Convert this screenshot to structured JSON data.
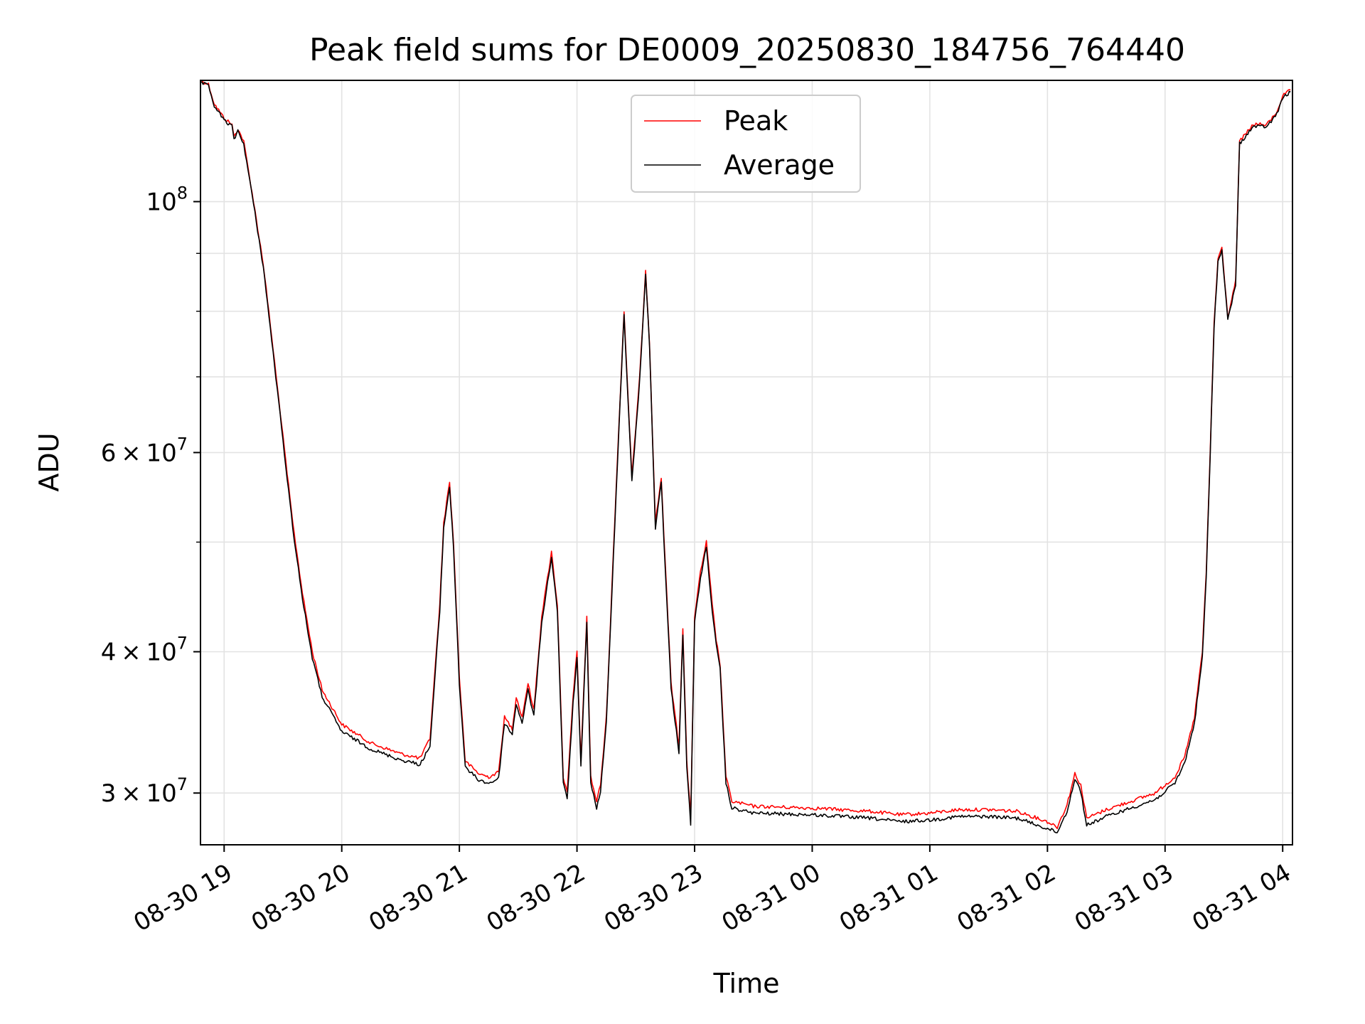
{
  "chart_data": {
    "type": "line",
    "title": "Peak field sums for DE0009_20250830_184756_764440",
    "xlabel": "Time",
    "ylabel": "ADU",
    "yscale": "log",
    "ylim": [
      27000000,
      128000000
    ],
    "xlim": [
      "2025-08-30 18:47:56",
      "2025-08-31 04:05:00"
    ],
    "grid": true,
    "legend_position": "top-center",
    "x_ticks": [
      {
        "t": "2025-08-30 19:00",
        "label": "08-30 19"
      },
      {
        "t": "2025-08-30 20:00",
        "label": "08-30 20"
      },
      {
        "t": "2025-08-30 21:00",
        "label": "08-30 21"
      },
      {
        "t": "2025-08-30 22:00",
        "label": "08-30 22"
      },
      {
        "t": "2025-08-30 23:00",
        "label": "08-30 23"
      },
      {
        "t": "2025-08-31 00:00",
        "label": "08-31 00"
      },
      {
        "t": "2025-08-31 01:00",
        "label": "08-31 01"
      },
      {
        "t": "2025-08-31 02:00",
        "label": "08-31 02"
      },
      {
        "t": "2025-08-31 03:00",
        "label": "08-31 03"
      },
      {
        "t": "2025-08-31 04:00",
        "label": "08-31 04"
      }
    ],
    "y_ticks": [
      {
        "value": 30000000,
        "mantissa": "3",
        "exp": "7"
      },
      {
        "value": 40000000,
        "mantissa": "4",
        "exp": "7"
      },
      {
        "value": 60000000,
        "mantissa": "6",
        "exp": "7"
      },
      {
        "value": 100000000,
        "mantissa": "",
        "exp": "8"
      }
    ],
    "y_minor_ticks": [
      50000000,
      70000000,
      80000000,
      90000000
    ],
    "series": [
      {
        "name": "Peak",
        "color": "#ff0000",
        "x": [
          "2025-08-30 18:47:56",
          "2025-08-30 18:52",
          "2025-08-30 18:55",
          "2025-08-30 19:00",
          "2025-08-30 19:04",
          "2025-08-30 19:05",
          "2025-08-30 19:07",
          "2025-08-30 19:10",
          "2025-08-30 19:15",
          "2025-08-30 19:20",
          "2025-08-30 19:25",
          "2025-08-30 19:30",
          "2025-08-30 19:35",
          "2025-08-30 19:40",
          "2025-08-30 19:45",
          "2025-08-30 19:50",
          "2025-08-30 20:00",
          "2025-08-30 20:15",
          "2025-08-30 20:30",
          "2025-08-30 20:40",
          "2025-08-30 20:45",
          "2025-08-30 20:50",
          "2025-08-30 20:52",
          "2025-08-30 20:55",
          "2025-08-30 20:57",
          "2025-08-30 21:00",
          "2025-08-30 21:03",
          "2025-08-30 21:10",
          "2025-08-30 21:15",
          "2025-08-30 21:20",
          "2025-08-30 21:23",
          "2025-08-30 21:27",
          "2025-08-30 21:29",
          "2025-08-30 21:32",
          "2025-08-30 21:35",
          "2025-08-30 21:38",
          "2025-08-30 21:42",
          "2025-08-30 21:45",
          "2025-08-30 21:47",
          "2025-08-30 21:50",
          "2025-08-30 21:53",
          "2025-08-30 21:55",
          "2025-08-30 21:58",
          "2025-08-30 22:00",
          "2025-08-30 22:02",
          "2025-08-30 22:05",
          "2025-08-30 22:07",
          "2025-08-30 22:10",
          "2025-08-30 22:12",
          "2025-08-30 22:15",
          "2025-08-30 22:20",
          "2025-08-30 22:24",
          "2025-08-30 22:28",
          "2025-08-30 22:32",
          "2025-08-30 22:35",
          "2025-08-30 22:37",
          "2025-08-30 22:40",
          "2025-08-30 22:43",
          "2025-08-30 22:45",
          "2025-08-30 22:48",
          "2025-08-30 22:52",
          "2025-08-30 22:54",
          "2025-08-30 22:56",
          "2025-08-30 22:58",
          "2025-08-30 23:00",
          "2025-08-30 23:03",
          "2025-08-30 23:06",
          "2025-08-30 23:09",
          "2025-08-30 23:11",
          "2025-08-30 23:13",
          "2025-08-30 23:16",
          "2025-08-30 23:19",
          "2025-08-30 23:30",
          "2025-08-31 00:00",
          "2025-08-31 00:30",
          "2025-08-31 00:45",
          "2025-08-31 01:00",
          "2025-08-31 01:15",
          "2025-08-31 01:30",
          "2025-08-31 01:45",
          "2025-08-31 02:00",
          "2025-08-31 02:05",
          "2025-08-31 02:10",
          "2025-08-31 02:14",
          "2025-08-31 02:17",
          "2025-08-31 02:20",
          "2025-08-31 02:30",
          "2025-08-31 02:45",
          "2025-08-31 02:55",
          "2025-08-31 03:05",
          "2025-08-31 03:10",
          "2025-08-31 03:15",
          "2025-08-31 03:19",
          "2025-08-31 03:21",
          "2025-08-31 03:23",
          "2025-08-31 03:25",
          "2025-08-31 03:27",
          "2025-08-31 03:29",
          "2025-08-31 03:32",
          "2025-08-31 03:36",
          "2025-08-31 03:38",
          "2025-08-31 03:45",
          "2025-08-31 03:52",
          "2025-08-31 03:57",
          "2025-08-31 04:00",
          "2025-08-31 04:04"
        ],
        "values": [
          128000000,
          127000000,
          122000000,
          118500000,
          117000000,
          114000000,
          116000000,
          113000000,
          100000000,
          88000000,
          74000000,
          62000000,
          52000000,
          45000000,
          40000000,
          37000000,
          34500000,
          33200000,
          32500000,
          32200000,
          33500000,
          44000000,
          52000000,
          56500000,
          50000000,
          38000000,
          32000000,
          31200000,
          31000000,
          31300000,
          35000000,
          34200000,
          36500000,
          35000000,
          37500000,
          35500000,
          43000000,
          46500000,
          49000000,
          44000000,
          31000000,
          30000000,
          36500000,
          40000000,
          32000000,
          43000000,
          31000000,
          29500000,
          30500000,
          35000000,
          56000000,
          80000000,
          57000000,
          70000000,
          87000000,
          75000000,
          52000000,
          57000000,
          48000000,
          37500000,
          33000000,
          42000000,
          32000000,
          28500000,
          43000000,
          47000000,
          50000000,
          44000000,
          41000000,
          39000000,
          31000000,
          29500000,
          29200000,
          29100000,
          28900000,
          28700000,
          28800000,
          29000000,
          29000000,
          28900000,
          28300000,
          28000000,
          29300000,
          31200000,
          30500000,
          28500000,
          29000000,
          29600000,
          30000000,
          31000000,
          32300000,
          35000000,
          40000000,
          47000000,
          60000000,
          78000000,
          89000000,
          91000000,
          79000000,
          85000000,
          113000000,
          117000000,
          117000000,
          120000000,
          124000000,
          125500000
        ]
      },
      {
        "name": "Average",
        "color": "#000000",
        "x": [
          "2025-08-30 18:47:56",
          "2025-08-30 18:52",
          "2025-08-30 18:55",
          "2025-08-30 19:00",
          "2025-08-30 19:04",
          "2025-08-30 19:05",
          "2025-08-30 19:07",
          "2025-08-30 19:10",
          "2025-08-30 19:15",
          "2025-08-30 19:20",
          "2025-08-30 19:25",
          "2025-08-30 19:30",
          "2025-08-30 19:35",
          "2025-08-30 19:40",
          "2025-08-30 19:45",
          "2025-08-30 19:50",
          "2025-08-30 20:00",
          "2025-08-30 20:15",
          "2025-08-30 20:30",
          "2025-08-30 20:40",
          "2025-08-30 20:45",
          "2025-08-30 20:50",
          "2025-08-30 20:52",
          "2025-08-30 20:55",
          "2025-08-30 20:57",
          "2025-08-30 21:00",
          "2025-08-30 21:03",
          "2025-08-30 21:10",
          "2025-08-30 21:15",
          "2025-08-30 21:20",
          "2025-08-30 21:23",
          "2025-08-30 21:27",
          "2025-08-30 21:29",
          "2025-08-30 21:32",
          "2025-08-30 21:35",
          "2025-08-30 21:38",
          "2025-08-30 21:42",
          "2025-08-30 21:45",
          "2025-08-30 21:47",
          "2025-08-30 21:50",
          "2025-08-30 21:53",
          "2025-08-30 21:55",
          "2025-08-30 21:58",
          "2025-08-30 22:00",
          "2025-08-30 22:02",
          "2025-08-30 22:05",
          "2025-08-30 22:07",
          "2025-08-30 22:10",
          "2025-08-30 22:12",
          "2025-08-30 22:15",
          "2025-08-30 22:20",
          "2025-08-30 22:24",
          "2025-08-30 22:28",
          "2025-08-30 22:32",
          "2025-08-30 22:35",
          "2025-08-30 22:37",
          "2025-08-30 22:40",
          "2025-08-30 22:43",
          "2025-08-30 22:45",
          "2025-08-30 22:48",
          "2025-08-30 22:52",
          "2025-08-30 22:54",
          "2025-08-30 22:56",
          "2025-08-30 22:58",
          "2025-08-30 23:00",
          "2025-08-30 23:03",
          "2025-08-30 23:06",
          "2025-08-30 23:09",
          "2025-08-30 23:11",
          "2025-08-30 23:13",
          "2025-08-30 23:16",
          "2025-08-30 23:19",
          "2025-08-30 23:30",
          "2025-08-31 00:00",
          "2025-08-31 00:30",
          "2025-08-31 00:45",
          "2025-08-31 01:00",
          "2025-08-31 01:15",
          "2025-08-31 01:30",
          "2025-08-31 01:45",
          "2025-08-31 02:00",
          "2025-08-31 02:05",
          "2025-08-31 02:10",
          "2025-08-31 02:14",
          "2025-08-31 02:17",
          "2025-08-31 02:20",
          "2025-08-31 02:30",
          "2025-08-31 02:45",
          "2025-08-31 02:55",
          "2025-08-31 03:05",
          "2025-08-31 03:10",
          "2025-08-31 03:15",
          "2025-08-31 03:19",
          "2025-08-31 03:21",
          "2025-08-31 03:23",
          "2025-08-31 03:25",
          "2025-08-31 03:27",
          "2025-08-31 03:29",
          "2025-08-31 03:32",
          "2025-08-31 03:36",
          "2025-08-31 03:38",
          "2025-08-31 03:45",
          "2025-08-31 03:52",
          "2025-08-31 03:57",
          "2025-08-31 04:00",
          "2025-08-31 04:04"
        ],
        "values": [
          127500000,
          126500000,
          121500000,
          118000000,
          116500000,
          113500000,
          115500000,
          112500000,
          99500000,
          87500000,
          73500000,
          61500000,
          51500000,
          44500000,
          39500000,
          36500000,
          34000000,
          32800000,
          32100000,
          31800000,
          33000000,
          43500000,
          51500000,
          56000000,
          49500000,
          37500000,
          31600000,
          30800000,
          30600000,
          30900000,
          34600000,
          33800000,
          36000000,
          34600000,
          37000000,
          35100000,
          42500000,
          46000000,
          48500000,
          43500000,
          30600000,
          29600000,
          36000000,
          39500000,
          31600000,
          42500000,
          30600000,
          29100000,
          30100000,
          34600000,
          55500000,
          79500000,
          56500000,
          69500000,
          86500000,
          74500000,
          51500000,
          56500000,
          47500000,
          37100000,
          32600000,
          41500000,
          31600000,
          28200000,
          42500000,
          46500000,
          49500000,
          43500000,
          40500000,
          38600000,
          30600000,
          29100000,
          28800000,
          28700000,
          28500000,
          28300000,
          28400000,
          28600000,
          28600000,
          28500000,
          27900000,
          27700000,
          28900000,
          30900000,
          30100000,
          28100000,
          28600000,
          29200000,
          29600000,
          30600000,
          31900000,
          34600000,
          39500000,
          46500000,
          59500000,
          77500000,
          88500000,
          90500000,
          78500000,
          84500000,
          112500000,
          116500000,
          116500000,
          119500000,
          123500000,
          125000000
        ]
      }
    ]
  }
}
